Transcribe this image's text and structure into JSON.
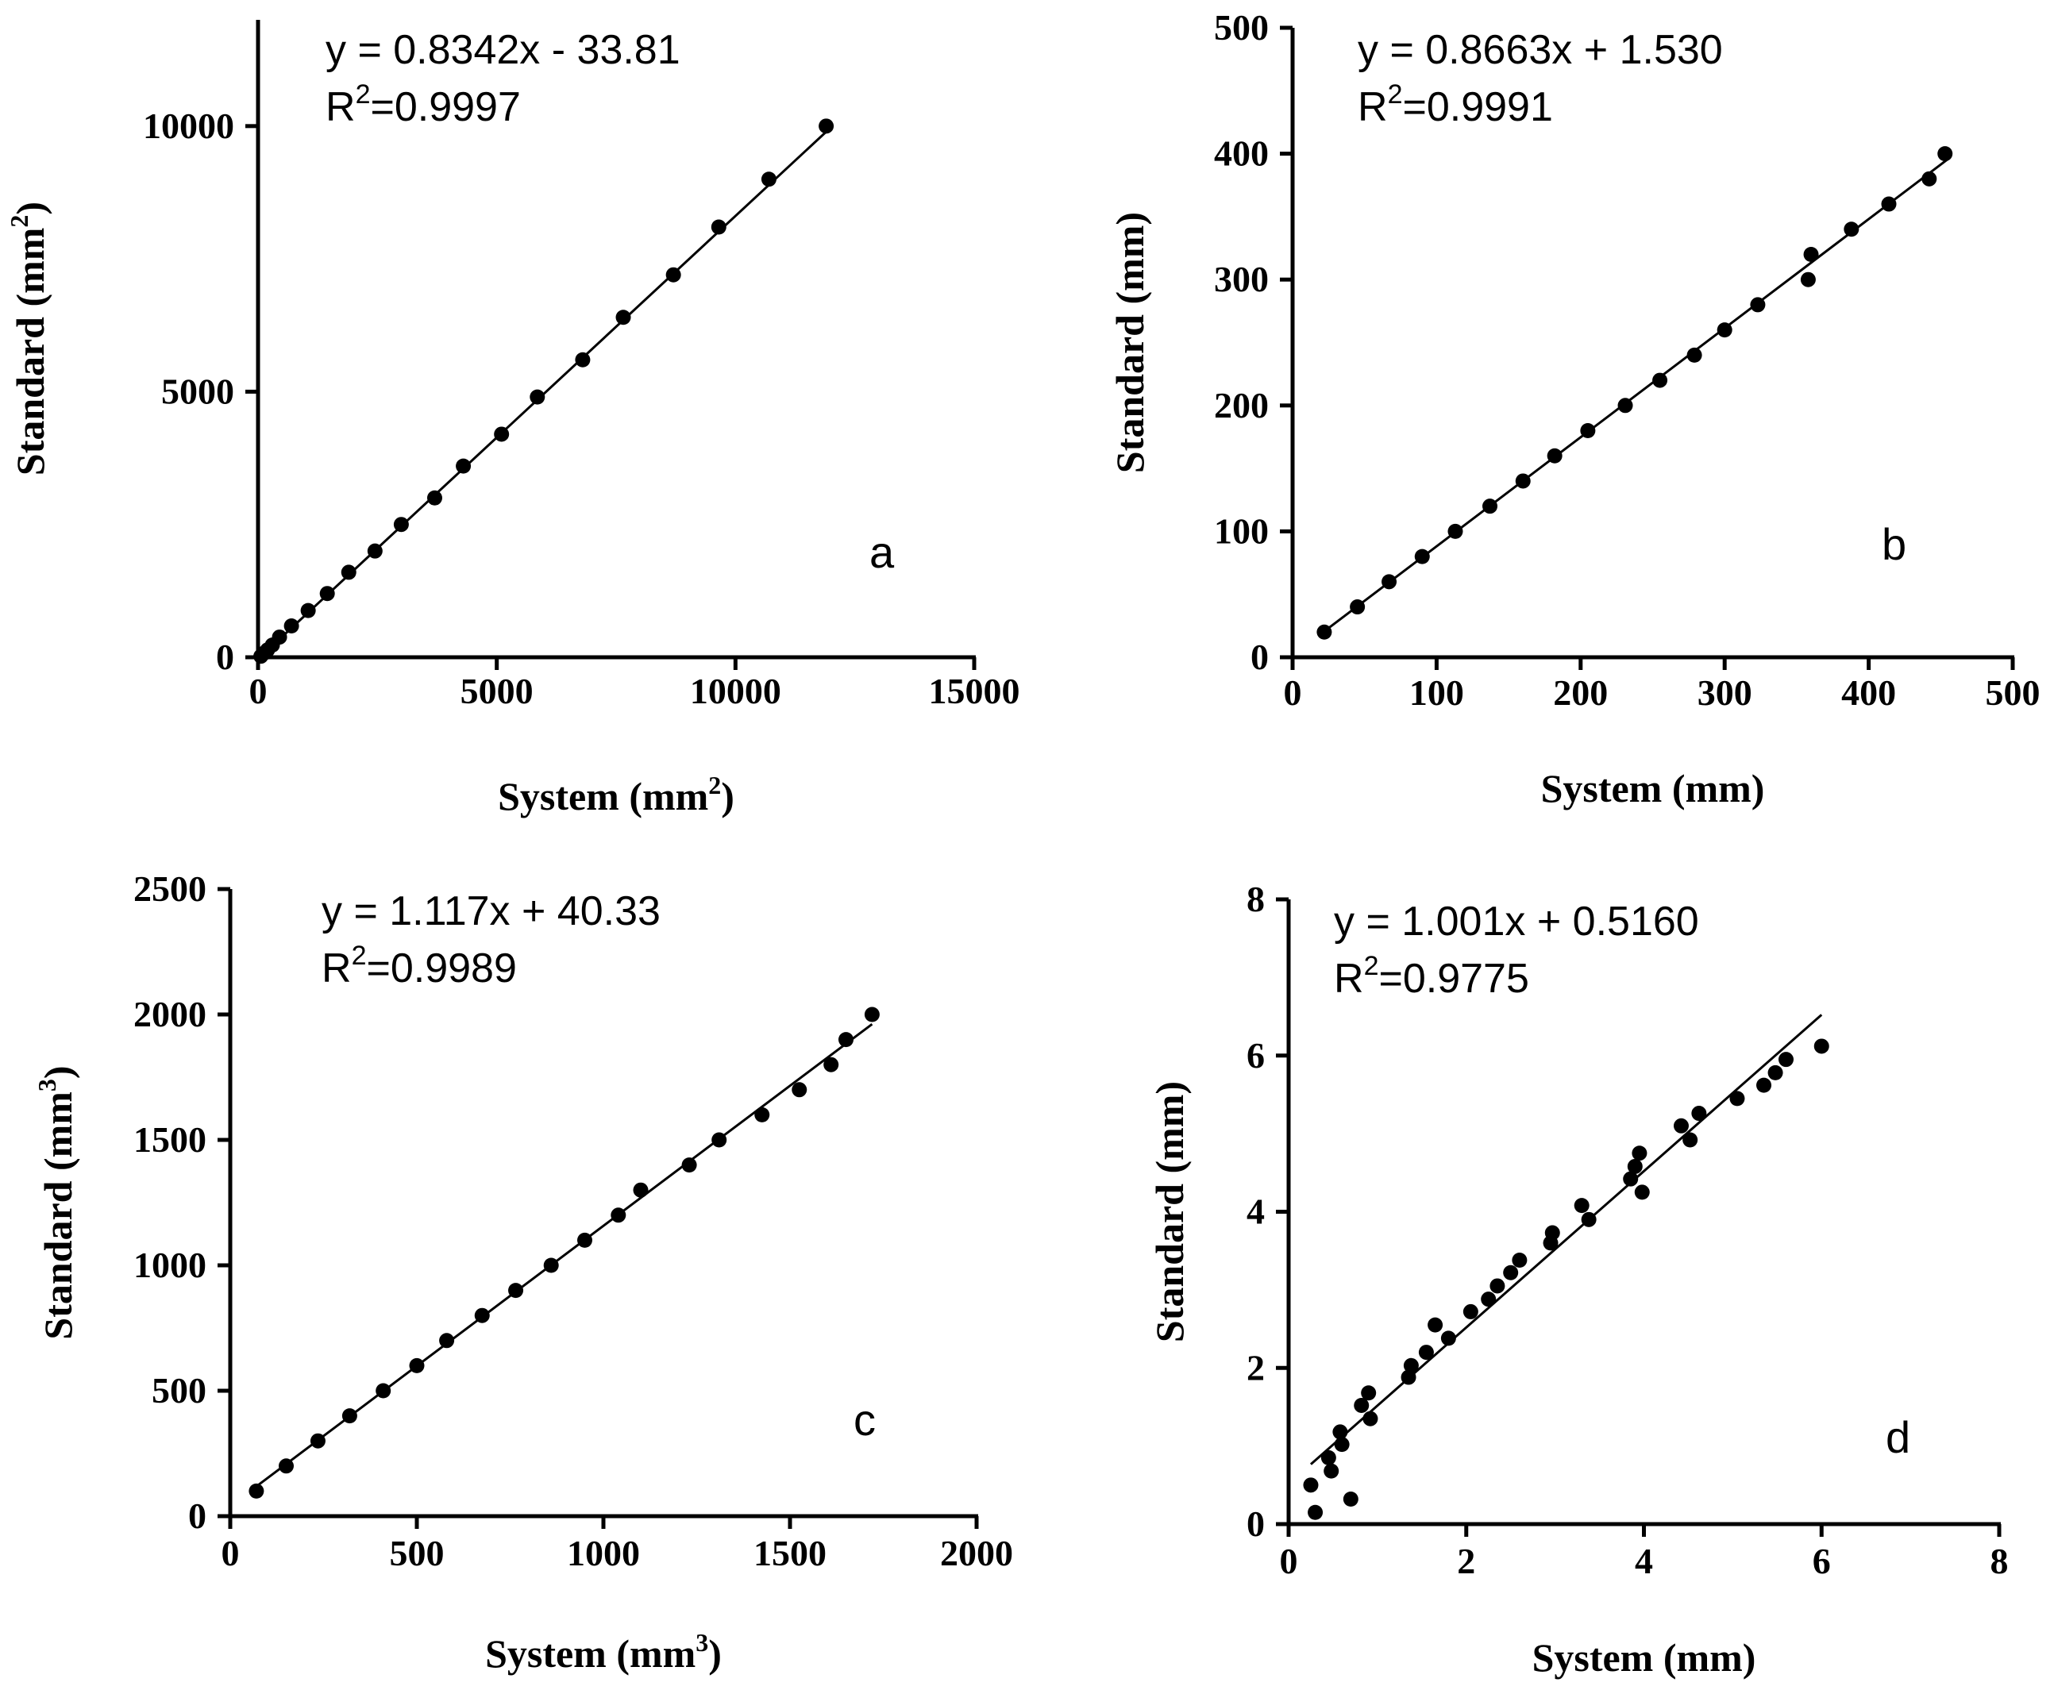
{
  "chart_data": [
    {
      "type": "scatter",
      "panel_label": "a",
      "equation": "y = 0.8342x - 33.81",
      "r2_prefix": "R",
      "r2_sup": "2",
      "r2_value": "=0.9997",
      "xlabel": "System (mm",
      "xlabel_sup": "2",
      "xlabel_end": ")",
      "ylabel": "Standard (mm",
      "ylabel_sup": "2",
      "ylabel_end": ")",
      "xlim": [
        0,
        15000
      ],
      "ylim": [
        0,
        12000
      ],
      "xticks": [
        0,
        5000,
        10000,
        15000
      ],
      "yticks": [
        0,
        5000,
        10000
      ],
      "fit": {
        "slope": 0.8342,
        "intercept": -33.81,
        "x_range": [
          40,
          12030
        ]
      },
      "points": [
        {
          "x": 60,
          "y": 20
        },
        {
          "x": 130,
          "y": 80
        },
        {
          "x": 200,
          "y": 140
        },
        {
          "x": 300,
          "y": 230
        },
        {
          "x": 450,
          "y": 380
        },
        {
          "x": 700,
          "y": 590
        },
        {
          "x": 1050,
          "y": 880
        },
        {
          "x": 1450,
          "y": 1200
        },
        {
          "x": 1900,
          "y": 1600
        },
        {
          "x": 2450,
          "y": 2000
        },
        {
          "x": 3000,
          "y": 2500
        },
        {
          "x": 3700,
          "y": 3000
        },
        {
          "x": 4300,
          "y": 3600
        },
        {
          "x": 5100,
          "y": 4200
        },
        {
          "x": 5850,
          "y": 4900
        },
        {
          "x": 6800,
          "y": 5600
        },
        {
          "x": 7650,
          "y": 6400
        },
        {
          "x": 8700,
          "y": 7200
        },
        {
          "x": 9650,
          "y": 8100
        },
        {
          "x": 10700,
          "y": 9000
        },
        {
          "x": 11900,
          "y": 10000
        }
      ]
    },
    {
      "type": "scatter",
      "panel_label": "b",
      "equation": "y = 0.8663x + 1.530",
      "r2_prefix": "R",
      "r2_sup": "2",
      "r2_value": "=0.9991",
      "xlabel": "System (mm)",
      "xlabel_sup": "",
      "xlabel_end": "",
      "ylabel": "Standard (mm)",
      "ylabel_sup": "",
      "ylabel_end": "",
      "xlim": [
        0,
        500
      ],
      "ylim": [
        0,
        500
      ],
      "xticks": [
        0,
        100,
        200,
        300,
        400,
        500
      ],
      "yticks": [
        0,
        100,
        200,
        300,
        400,
        500
      ],
      "fit": {
        "slope": 0.8663,
        "intercept": 1.53,
        "x_range": [
          20,
          455
        ]
      },
      "points": [
        {
          "x": 22,
          "y": 20
        },
        {
          "x": 45,
          "y": 40
        },
        {
          "x": 67,
          "y": 60
        },
        {
          "x": 90,
          "y": 80
        },
        {
          "x": 113,
          "y": 100
        },
        {
          "x": 137,
          "y": 120
        },
        {
          "x": 160,
          "y": 140
        },
        {
          "x": 182,
          "y": 160
        },
        {
          "x": 205,
          "y": 180
        },
        {
          "x": 231,
          "y": 200
        },
        {
          "x": 255,
          "y": 220
        },
        {
          "x": 279,
          "y": 240
        },
        {
          "x": 300,
          "y": 260
        },
        {
          "x": 323,
          "y": 280
        },
        {
          "x": 358,
          "y": 300
        },
        {
          "x": 360,
          "y": 320
        },
        {
          "x": 388,
          "y": 340
        },
        {
          "x": 414,
          "y": 360
        },
        {
          "x": 442,
          "y": 380
        },
        {
          "x": 453,
          "y": 400
        }
      ]
    },
    {
      "type": "scatter",
      "panel_label": "c",
      "equation": "y = 1.117x + 40.33",
      "r2_prefix": "R",
      "r2_sup": "2",
      "r2_value": "=0.9989",
      "xlabel": "System (mm",
      "xlabel_sup": "3",
      "xlabel_end": ")",
      "ylabel": "Standard (mm",
      "ylabel_sup": "3",
      "ylabel_end": ")",
      "xlim": [
        0,
        2000
      ],
      "ylim": [
        0,
        2500
      ],
      "xticks": [
        0,
        500,
        1000,
        1500,
        2000
      ],
      "yticks": [
        0,
        500,
        1000,
        1500,
        2000,
        2500
      ],
      "fit": {
        "slope": 1.117,
        "intercept": 40.33,
        "x_range": [
          60,
          1720
        ]
      },
      "points": [
        {
          "x": 70,
          "y": 100
        },
        {
          "x": 150,
          "y": 200
        },
        {
          "x": 235,
          "y": 300
        },
        {
          "x": 320,
          "y": 400
        },
        {
          "x": 410,
          "y": 500
        },
        {
          "x": 500,
          "y": 600
        },
        {
          "x": 580,
          "y": 700
        },
        {
          "x": 675,
          "y": 800
        },
        {
          "x": 765,
          "y": 900
        },
        {
          "x": 860,
          "y": 1000
        },
        {
          "x": 950,
          "y": 1100
        },
        {
          "x": 1040,
          "y": 1200
        },
        {
          "x": 1100,
          "y": 1300
        },
        {
          "x": 1230,
          "y": 1400
        },
        {
          "x": 1310,
          "y": 1500
        },
        {
          "x": 1425,
          "y": 1600
        },
        {
          "x": 1525,
          "y": 1700
        },
        {
          "x": 1610,
          "y": 1800
        },
        {
          "x": 1650,
          "y": 1900
        },
        {
          "x": 1720,
          "y": 2000
        }
      ]
    },
    {
      "type": "scatter",
      "panel_label": "d",
      "equation": "y = 1.001x + 0.5160",
      "r2_prefix": "R",
      "r2_sup": "2",
      "r2_value": "=0.9775",
      "xlabel": "System (mm)",
      "xlabel_sup": "",
      "xlabel_end": "",
      "ylabel": "Standard (mm)",
      "ylabel_sup": "",
      "ylabel_end": "",
      "xlim": [
        0,
        8
      ],
      "ylim": [
        0,
        8
      ],
      "xticks": [
        0,
        2,
        4,
        6,
        8
      ],
      "yticks": [
        0,
        2,
        4,
        6,
        8
      ],
      "fit": {
        "slope": 1.001,
        "intercept": 0.516,
        "x_range": [
          0.25,
          6.0
        ]
      },
      "points": [
        {
          "x": 0.25,
          "y": 0.5
        },
        {
          "x": 0.3,
          "y": 0.15
        },
        {
          "x": 0.45,
          "y": 0.85
        },
        {
          "x": 0.48,
          "y": 0.68
        },
        {
          "x": 0.58,
          "y": 1.18
        },
        {
          "x": 0.6,
          "y": 1.02
        },
        {
          "x": 0.7,
          "y": 0.32
        },
        {
          "x": 0.82,
          "y": 1.52
        },
        {
          "x": 0.9,
          "y": 1.68
        },
        {
          "x": 0.92,
          "y": 1.35
        },
        {
          "x": 1.35,
          "y": 1.88
        },
        {
          "x": 1.38,
          "y": 2.03
        },
        {
          "x": 1.55,
          "y": 2.2
        },
        {
          "x": 1.65,
          "y": 2.55
        },
        {
          "x": 1.8,
          "y": 2.38
        },
        {
          "x": 2.05,
          "y": 2.72
        },
        {
          "x": 2.25,
          "y": 2.88
        },
        {
          "x": 2.35,
          "y": 3.05
        },
        {
          "x": 2.5,
          "y": 3.22
        },
        {
          "x": 2.6,
          "y": 3.38
        },
        {
          "x": 2.95,
          "y": 3.6
        },
        {
          "x": 2.97,
          "y": 3.73
        },
        {
          "x": 3.3,
          "y": 4.08
        },
        {
          "x": 3.38,
          "y": 3.9
        },
        {
          "x": 3.85,
          "y": 4.42
        },
        {
          "x": 3.9,
          "y": 4.58
        },
        {
          "x": 3.95,
          "y": 4.75
        },
        {
          "x": 3.98,
          "y": 4.25
        },
        {
          "x": 4.42,
          "y": 5.1
        },
        {
          "x": 4.52,
          "y": 4.92
        },
        {
          "x": 4.62,
          "y": 5.26
        },
        {
          "x": 5.05,
          "y": 5.45
        },
        {
          "x": 5.35,
          "y": 5.62
        },
        {
          "x": 5.48,
          "y": 5.78
        },
        {
          "x": 5.6,
          "y": 5.95
        },
        {
          "x": 6.0,
          "y": 6.12
        }
      ]
    }
  ]
}
